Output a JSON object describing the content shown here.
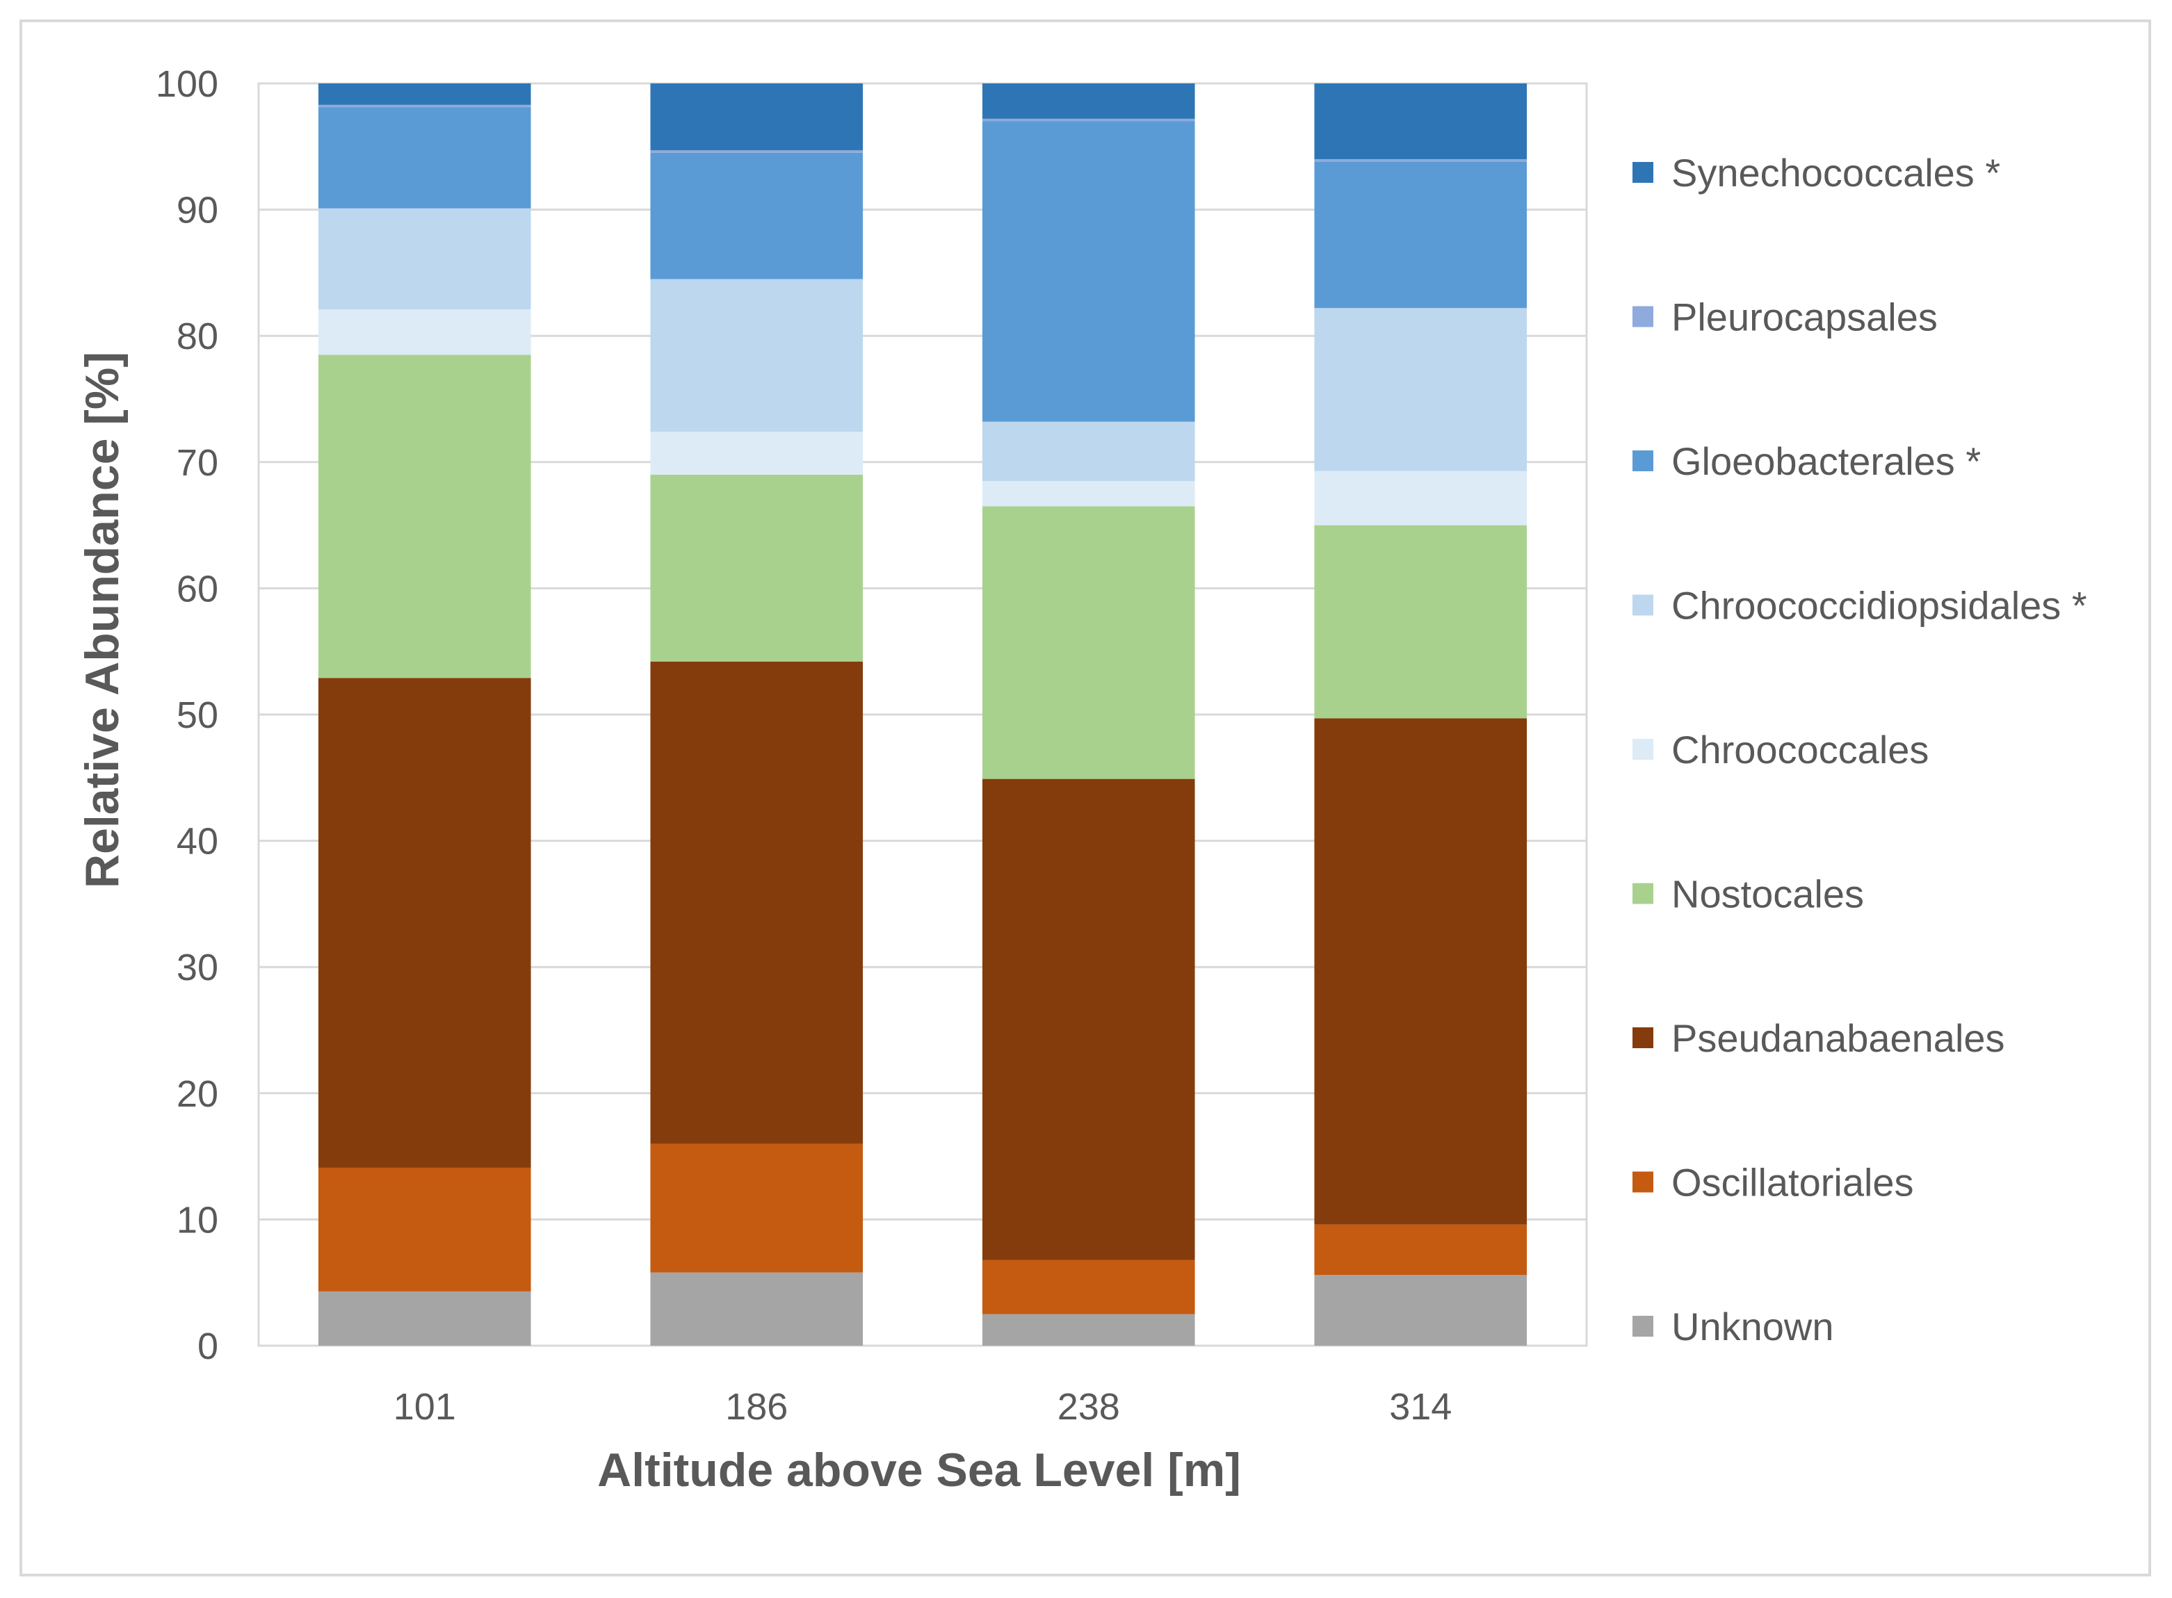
{
  "chart_data": {
    "type": "bar",
    "stacked": true,
    "xlabel": "Altitude above Sea Level [m]",
    "ylabel": "Relative Abundance [%]",
    "ylim": [
      0,
      100
    ],
    "yticks": [
      0,
      10,
      20,
      30,
      40,
      50,
      60,
      70,
      80,
      90,
      100
    ],
    "grid": true,
    "legend_position": "right",
    "categories": [
      "101",
      "186",
      "238",
      "314"
    ],
    "series": [
      {
        "name": "Unknown",
        "color": "#a5a5a5",
        "values": [
          4.3,
          5.8,
          2.5,
          5.6
        ]
      },
      {
        "name": "Oscillatoriales",
        "color": "#c55a11",
        "values": [
          9.8,
          10.2,
          4.3,
          4.0
        ]
      },
      {
        "name": "Pseudanabaenales",
        "color": "#843c0c",
        "values": [
          38.8,
          38.2,
          38.1,
          40.1
        ]
      },
      {
        "name": "Nostocales",
        "color": "#a9d18e",
        "values": [
          25.6,
          14.8,
          21.6,
          15.3
        ]
      },
      {
        "name": "Chroococcales",
        "color": "#ddebf7",
        "values": [
          3.6,
          3.4,
          2.0,
          4.3
        ]
      },
      {
        "name": "Chroococcidiopsidales *",
        "color": "#bdd7ee",
        "values": [
          8.0,
          12.1,
          4.7,
          12.9
        ]
      },
      {
        "name": "Gloeobacterales *",
        "color": "#5b9bd5",
        "values": [
          8.0,
          10.0,
          23.8,
          11.6
        ]
      },
      {
        "name": "Pleurocapsales",
        "color": "#8faadc",
        "values": [
          0.2,
          0.2,
          0.2,
          0.2
        ]
      },
      {
        "name": "Synechococcales *",
        "color": "#2e75b6",
        "values": [
          1.7,
          5.3,
          2.8,
          6.0
        ]
      }
    ]
  }
}
